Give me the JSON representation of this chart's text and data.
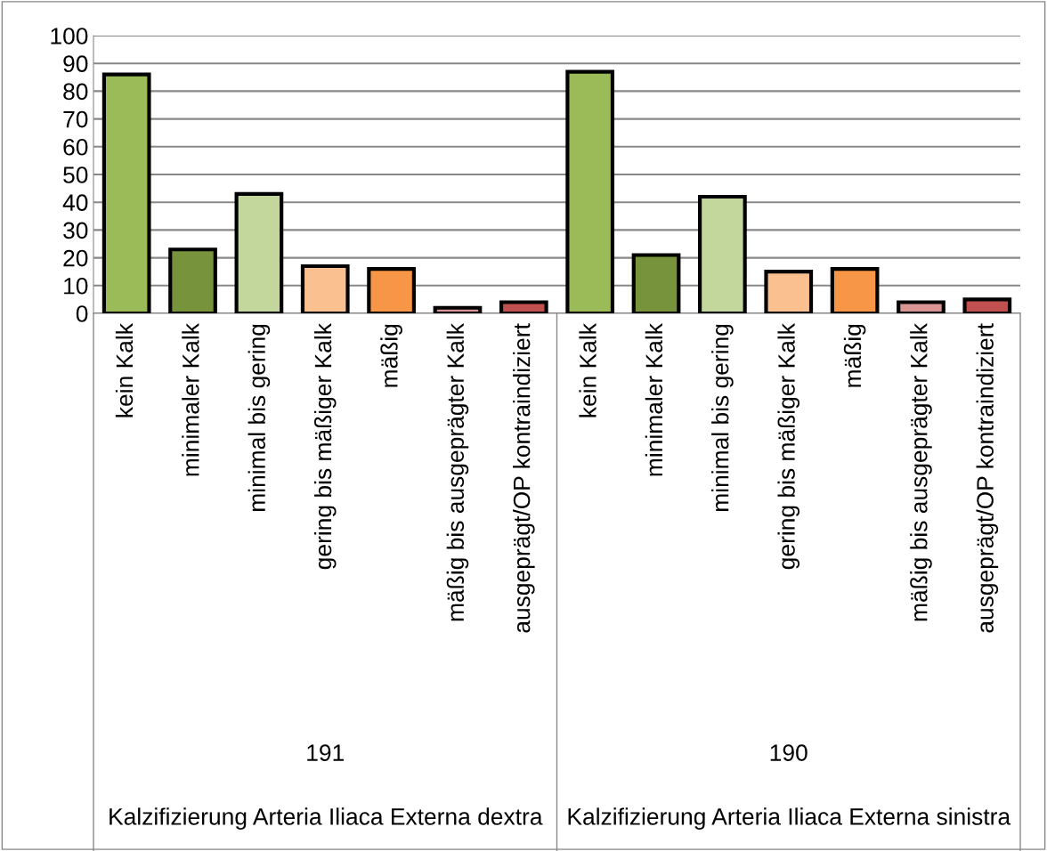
{
  "chart_data": {
    "type": "bar",
    "categories": [
      "kein Kalk",
      "minimaler Kalk",
      "minimal bis gering",
      "gering bis mäßiger Kalk",
      "mäßig",
      "mäßig bis ausgeprägter Kalk",
      "ausgeprägt/OP kontraindiziert",
      "kein Kalk",
      "minimaler Kalk",
      "minimal bis gering",
      "gering bis mäßiger Kalk",
      "mäßig",
      "mäßig bis ausgeprägter Kalk",
      "ausgeprägt/OP kontraindiziert"
    ],
    "values": [
      86,
      23,
      43,
      17,
      16,
      2,
      4,
      87,
      21,
      42,
      15,
      16,
      4,
      5
    ],
    "colors": [
      "#9bbb59",
      "#77933c",
      "#c3d69b",
      "#fac090",
      "#f79646",
      "#d99694",
      "#c0504d",
      "#9bbb59",
      "#77933c",
      "#c3d69b",
      "#fac090",
      "#f79646",
      "#d99694",
      "#c0504d"
    ],
    "ylim": [
      0,
      100
    ],
    "yticks": [
      0,
      10,
      20,
      30,
      40,
      50,
      60,
      70,
      80,
      90,
      100
    ],
    "grid": "y",
    "legend": false,
    "annotations": [
      "191",
      "Kalzifizierung Arteria Iliaca Externa dextra",
      "190",
      "Kalzifizierung Arteria Iliaca Externa sinistra"
    ]
  }
}
